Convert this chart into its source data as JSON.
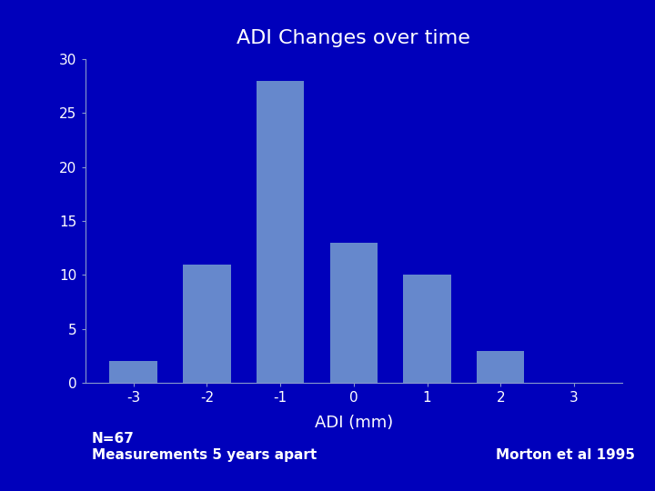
{
  "title": "ADI Changes over time",
  "categories": [
    -3,
    -2,
    -1,
    0,
    1,
    2,
    3
  ],
  "values": [
    2,
    11,
    28,
    13,
    10,
    3,
    0
  ],
  "bar_color": "#6688CC",
  "background_color": "#0000BB",
  "text_color": "#FFFFFF",
  "xlabel": "ADI (mm)",
  "ylabel": "",
  "ylim": [
    0,
    30
  ],
  "yticks": [
    0,
    5,
    10,
    15,
    20,
    25,
    30
  ],
  "title_fontsize": 16,
  "axis_label_fontsize": 13,
  "tick_fontsize": 11,
  "annotation_left": "N=67\nMeasurements 5 years apart",
  "annotation_right": "Morton et al 1995",
  "annotation_fontsize": 11,
  "spine_color": "#8899CC"
}
